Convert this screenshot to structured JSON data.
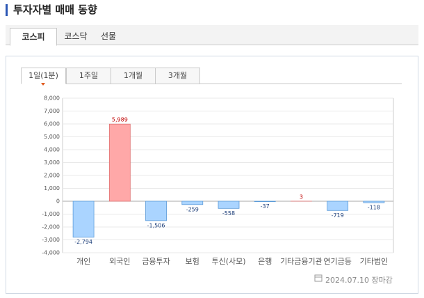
{
  "header": {
    "title": "투자자별 매매 동향"
  },
  "tabs": [
    "코스피",
    "코스닥",
    "선물"
  ],
  "period_tabs": [
    "1일(1분)",
    "1주일",
    "1개월",
    "3개월"
  ],
  "footer": {
    "date": "2024.07.10 장마감"
  },
  "chart_data": {
    "type": "bar",
    "categories": [
      "개인",
      "외국인",
      "금융투자",
      "보험",
      "투신(사모)",
      "은행",
      "기타금융기관",
      "연기금등",
      "기타법인"
    ],
    "values": [
      -2794,
      5989,
      -1506,
      -259,
      -558,
      -37,
      3,
      -719,
      -118
    ],
    "value_labels": [
      "-2,794",
      "5,989",
      "-1,506",
      "-259",
      "-558",
      "-37",
      "3",
      "-719",
      "-118"
    ],
    "positive_color": "#ffa8a8",
    "negative_color": "#aad4ff",
    "ylim": [
      -4000,
      8000
    ],
    "yticks": [
      {
        "value": -4000,
        "label": "-4,000"
      },
      {
        "value": -3000,
        "label": "-3,000"
      },
      {
        "value": -2000,
        "label": "-2,000"
      },
      {
        "value": -1000,
        "label": "-1,000"
      },
      0,
      {
        "value": 1000,
        "label": "1,000"
      },
      {
        "value": 2000,
        "label": "2,000"
      },
      {
        "value": 3000,
        "label": "3,000"
      },
      {
        "value": 4000,
        "label": "4,000"
      },
      {
        "value": 5000,
        "label": "5,000"
      },
      {
        "value": 6000,
        "label": "6,000"
      },
      {
        "value": 7000,
        "label": "7,000"
      },
      {
        "value": 8000,
        "label": "8,000"
      }
    ],
    "grid": true
  }
}
